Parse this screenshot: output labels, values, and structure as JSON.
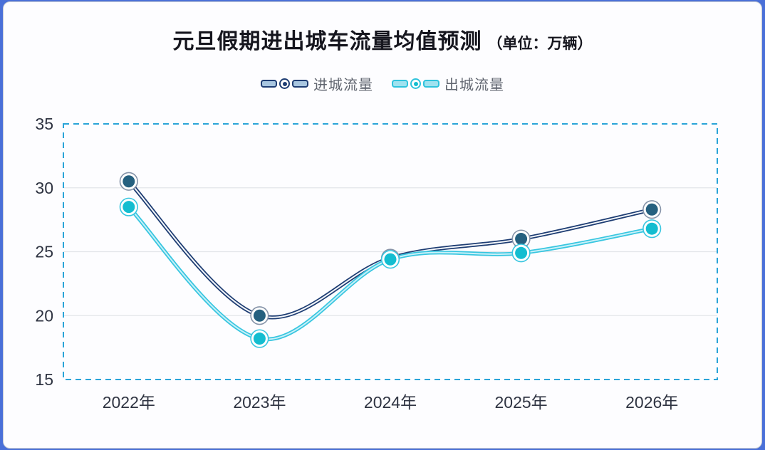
{
  "title": {
    "text": "元旦假期进出城车流量均值预测",
    "unit": "（单位：万辆）"
  },
  "legend": {
    "items": [
      {
        "label": "进城流量"
      },
      {
        "label": "出城流量"
      }
    ]
  },
  "chart_data": {
    "type": "line",
    "title": "元旦假期进出城车流量均值预测（单位：万辆）",
    "categories": [
      "2022年",
      "2023年",
      "2024年",
      "2025年",
      "2026年"
    ],
    "series": [
      {
        "name": "进城流量",
        "values": [
          30.5,
          20.0,
          24.5,
          26.0,
          28.3
        ]
      },
      {
        "name": "出城流量",
        "values": [
          28.5,
          18.2,
          24.4,
          24.9,
          26.8
        ]
      }
    ],
    "xlabel": "",
    "ylabel": "",
    "ylim": [
      15,
      35
    ],
    "y_ticks": [
      15,
      20,
      25,
      30,
      35
    ],
    "grid": true,
    "smooth": true,
    "legend_position": "top"
  },
  "colors": {
    "page_edge": "#4a70d8",
    "card_bg": "#fdfdff",
    "card_border": "#c9cdd3",
    "title_text": "#16161e",
    "legend_text": "#60656f",
    "axis_text": "#2f3442",
    "grid_line": "#e2e4e9",
    "plot_border_dashed": "#2aa4d8",
    "series": [
      {
        "line": "#1e3d73",
        "line_center": "#f4f7fb",
        "marker_fill": "#25607f",
        "marker_ring": "#8593a8",
        "legend_pill_fill": "#a8c6e0",
        "legend_pill_border": "#1e3d73",
        "legend_dot": "#1e3d73"
      },
      {
        "line": "#38c6e0",
        "line_center": "#c9f0f8",
        "marker_fill": "#14bdd0",
        "marker_ring": "#38c6e0",
        "legend_pill_fill": "#9fe2ef",
        "legend_pill_border": "#2fc3dc",
        "legend_dot": "#14bdd0"
      }
    ]
  }
}
